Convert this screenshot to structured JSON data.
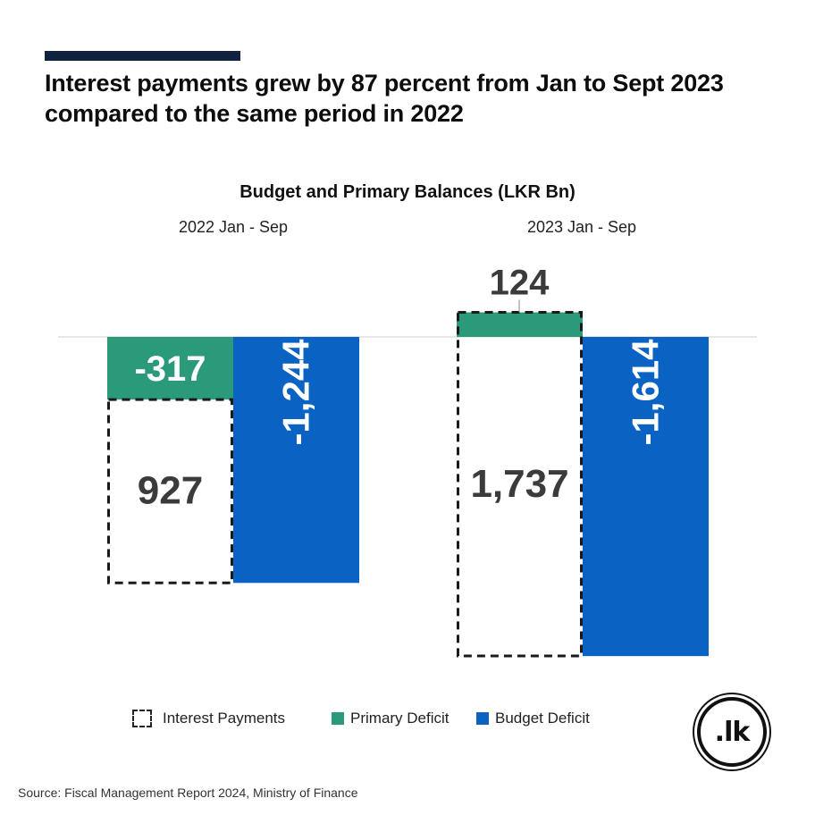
{
  "headline": "Interest payments grew by 87 percent from Jan to Sept 2023 compared to the same period in 2022",
  "source": "Source: Fiscal Management Report 2024, Ministry of Finance",
  "logo_text": ".lk",
  "colors": {
    "primary_deficit": "#2a9a7b",
    "budget_deficit": "#0a62c2",
    "interest_payments_border": "#1a1a1a",
    "accent_bar": "#0f2340"
  },
  "legend": {
    "interest_payments": "Interest Payments",
    "primary_deficit": "Primary Deficit",
    "budget_deficit": "Budget Deficit"
  },
  "chart_data": {
    "type": "bar",
    "title": "Budget and Primary Balances (LKR Bn)",
    "categories": [
      "2022 Jan - Sep",
      "2023 Jan - Sep"
    ],
    "series": [
      {
        "name": "Primary Deficit",
        "values": [
          -317,
          124
        ],
        "labels": [
          "-317",
          "124"
        ]
      },
      {
        "name": "Interest Payments",
        "values": [
          927,
          1737
        ],
        "labels": [
          "927",
          "1,737"
        ]
      },
      {
        "name": "Budget Deficit",
        "values": [
          -1244,
          -1614
        ],
        "labels": [
          "-1,244",
          "-1,614"
        ]
      }
    ],
    "xlabel": "",
    "ylabel": "",
    "grid": false,
    "legend_position": "bottom"
  }
}
